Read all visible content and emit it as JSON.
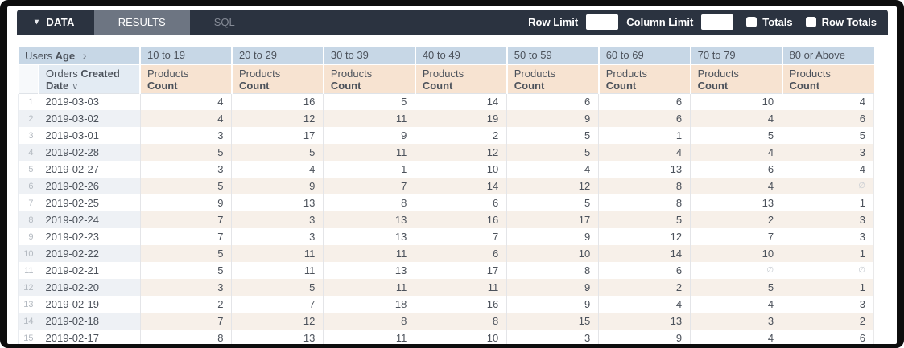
{
  "toolbar": {
    "caret_icon": "▾",
    "data_tab": "DATA",
    "results_tab": "RESULTS",
    "sql_tab": "SQL",
    "row_limit_label": "Row Limit",
    "row_limit_value": "",
    "column_limit_label": "Column Limit",
    "column_limit_value": "",
    "totals_label": "Totals",
    "totals_checked": false,
    "row_totals_label": "Row Totals",
    "row_totals_checked": false
  },
  "colors": {
    "toolbar_bg": "#2b3340",
    "results_tab_bg": "#6d7582",
    "header_blue": "#c7d7e6",
    "row_field_blue": "#e3ebf3",
    "measure_peach": "#f7e3d1",
    "stripe_blue": "#eef1f5",
    "stripe_peach": "#f7f0e9",
    "text": "#4c525b"
  },
  "table": {
    "pivot_field": {
      "prefix": "Users",
      "bold": "Age",
      "arrow_icon": "›"
    },
    "age_buckets": [
      "10 to 19",
      "20 to 29",
      "30 to 39",
      "40 to 49",
      "50 to 59",
      "60 to 69",
      "70 to 79",
      "80 or Above"
    ],
    "row_field": {
      "prefix": "Orders",
      "bold_line1": "Created",
      "bold_line2": "Date",
      "sort_icon": "∨"
    },
    "measure": {
      "prefix": "Products",
      "bold": "Count"
    },
    "null_symbol": "∅",
    "rows": [
      {
        "num": "1",
        "date": "2019-03-03",
        "values": [
          4,
          16,
          5,
          14,
          6,
          6,
          10,
          4
        ]
      },
      {
        "num": "2",
        "date": "2019-03-02",
        "values": [
          4,
          12,
          11,
          19,
          9,
          6,
          4,
          6
        ]
      },
      {
        "num": "3",
        "date": "2019-03-01",
        "values": [
          3,
          17,
          9,
          2,
          5,
          1,
          5,
          5
        ]
      },
      {
        "num": "4",
        "date": "2019-02-28",
        "values": [
          5,
          5,
          11,
          12,
          5,
          4,
          4,
          3
        ]
      },
      {
        "num": "5",
        "date": "2019-02-27",
        "values": [
          3,
          4,
          1,
          10,
          4,
          13,
          6,
          4
        ]
      },
      {
        "num": "6",
        "date": "2019-02-26",
        "values": [
          5,
          9,
          7,
          14,
          12,
          8,
          4,
          null
        ]
      },
      {
        "num": "7",
        "date": "2019-02-25",
        "values": [
          9,
          13,
          8,
          6,
          5,
          8,
          13,
          1
        ]
      },
      {
        "num": "8",
        "date": "2019-02-24",
        "values": [
          7,
          3,
          13,
          16,
          17,
          5,
          2,
          3
        ]
      },
      {
        "num": "9",
        "date": "2019-02-23",
        "values": [
          7,
          3,
          13,
          7,
          9,
          12,
          7,
          3
        ]
      },
      {
        "num": "10",
        "date": "2019-02-22",
        "values": [
          5,
          11,
          11,
          6,
          10,
          14,
          10,
          1
        ]
      },
      {
        "num": "11",
        "date": "2019-02-21",
        "values": [
          5,
          11,
          13,
          17,
          8,
          6,
          null,
          null
        ]
      },
      {
        "num": "12",
        "date": "2019-02-20",
        "values": [
          3,
          5,
          11,
          11,
          9,
          2,
          5,
          1
        ]
      },
      {
        "num": "13",
        "date": "2019-02-19",
        "values": [
          2,
          7,
          18,
          16,
          9,
          4,
          4,
          3
        ]
      },
      {
        "num": "14",
        "date": "2019-02-18",
        "values": [
          7,
          12,
          8,
          8,
          15,
          13,
          3,
          2
        ]
      },
      {
        "num": "15",
        "date": "2019-02-17",
        "values": [
          8,
          13,
          11,
          10,
          3,
          9,
          4,
          6
        ]
      }
    ]
  }
}
